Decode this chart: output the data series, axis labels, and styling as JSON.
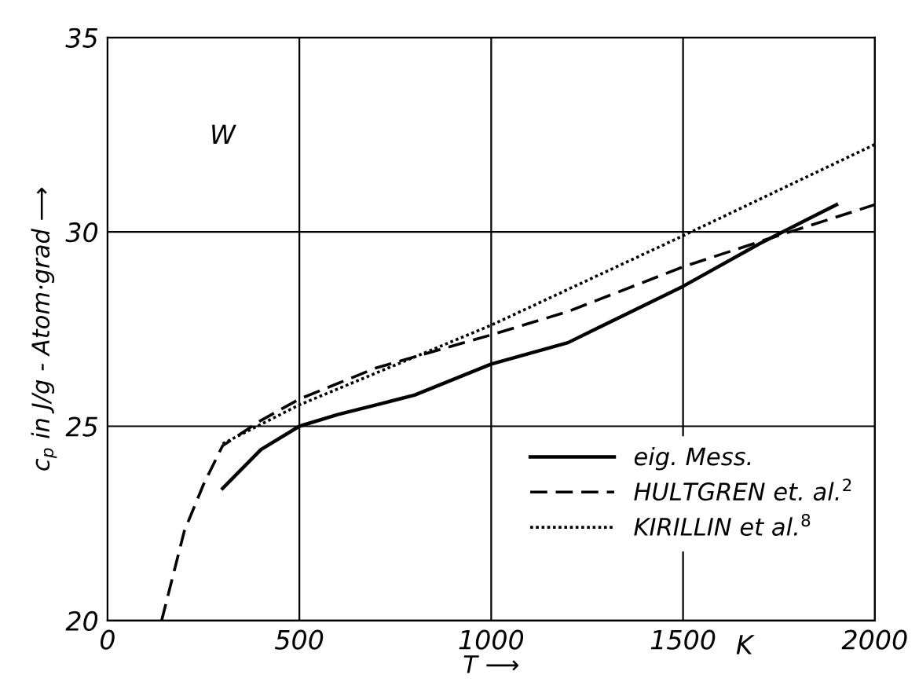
{
  "chart_data": {
    "type": "line",
    "xlabel": "T ⟶",
    "ylabel": "c$_{p}$ in J/g - Atom·grad ⟶",
    "xlim": [
      0,
      2000
    ],
    "ylim": [
      20,
      35
    ],
    "xticks": [
      0,
      500,
      1000,
      1500,
      2000
    ],
    "yticks": [
      20,
      25,
      30,
      35
    ],
    "grid": true,
    "legend": "bottom right",
    "annotations": [
      "W",
      "K"
    ],
    "series": [
      {
        "name": "eig. Mess.",
        "color": "#000000",
        "line_style": "solid",
        "x": [
          300,
          400,
          500,
          600,
          700,
          800,
          900,
          1000,
          1200,
          1500,
          1700,
          1900
        ],
        "values": [
          23.4,
          24.4,
          25.0,
          25.3,
          25.55,
          25.8,
          26.2,
          26.6,
          27.15,
          28.6,
          29.7,
          30.7
        ]
      },
      {
        "name": "HULTGREN et. al.$^{2}$",
        "color": "#000000",
        "line_style": "dashed",
        "x": [
          141,
          200,
          250,
          300,
          400,
          500,
          700,
          1000,
          1200,
          1500,
          1700,
          2000
        ],
        "values": [
          20,
          22.3,
          23.5,
          24.5,
          25.15,
          25.7,
          26.5,
          27.35,
          27.95,
          29.1,
          29.75,
          30.7
        ]
      },
      {
        "name": "KIRILLIN et al.$^{8}$",
        "color": "#000000",
        "line_style": "dotted",
        "x": [
          300,
          500,
          1000,
          1500,
          2000
        ],
        "values": [
          24.55,
          25.55,
          27.6,
          29.9,
          32.25
        ]
      }
    ]
  }
}
